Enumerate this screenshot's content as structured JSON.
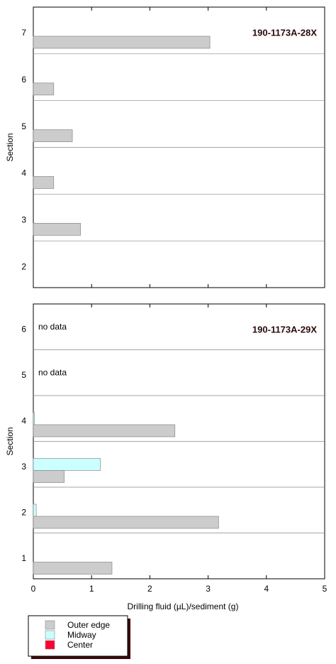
{
  "chart_data": [
    {
      "type": "bar",
      "orientation": "horizontal",
      "title": "190-1173A-28X",
      "y_label": "Section",
      "categories": [
        "7",
        "6",
        "5",
        "4",
        "3",
        "2"
      ],
      "series": [
        {
          "name": "Outer edge",
          "color": "#cccccc",
          "values": [
            3.03,
            0.35,
            0.67,
            0.35,
            0.81,
            null
          ]
        }
      ],
      "xlim": [
        0,
        5
      ],
      "xticks": [
        0,
        1,
        2,
        3,
        4,
        5
      ]
    },
    {
      "type": "bar",
      "orientation": "horizontal",
      "title": "190-1173A-29X",
      "y_label": "Section",
      "x_label": "Drilling fluid (µL)/sediment (g)",
      "categories": [
        "6",
        "5",
        "4",
        "3",
        "2",
        "1"
      ],
      "series": [
        {
          "name": "Outer edge",
          "color": "#cccccc",
          "values": [
            null,
            null,
            2.43,
            0.53,
            3.18,
            1.35
          ]
        },
        {
          "name": "Midway",
          "color": "#ccffff",
          "values": [
            null,
            null,
            0.02,
            1.15,
            0.05,
            null
          ]
        },
        {
          "name": "Center",
          "color": "#ff0033",
          "values": [
            null,
            null,
            null,
            null,
            null,
            null
          ]
        }
      ],
      "annotations": [
        {
          "text": "no data",
          "category": "6"
        },
        {
          "text": "no data",
          "category": "5"
        }
      ],
      "xlim": [
        0,
        5
      ],
      "xticks": [
        0,
        1,
        2,
        3,
        4,
        5
      ],
      "legend": "bottom-left"
    }
  ]
}
